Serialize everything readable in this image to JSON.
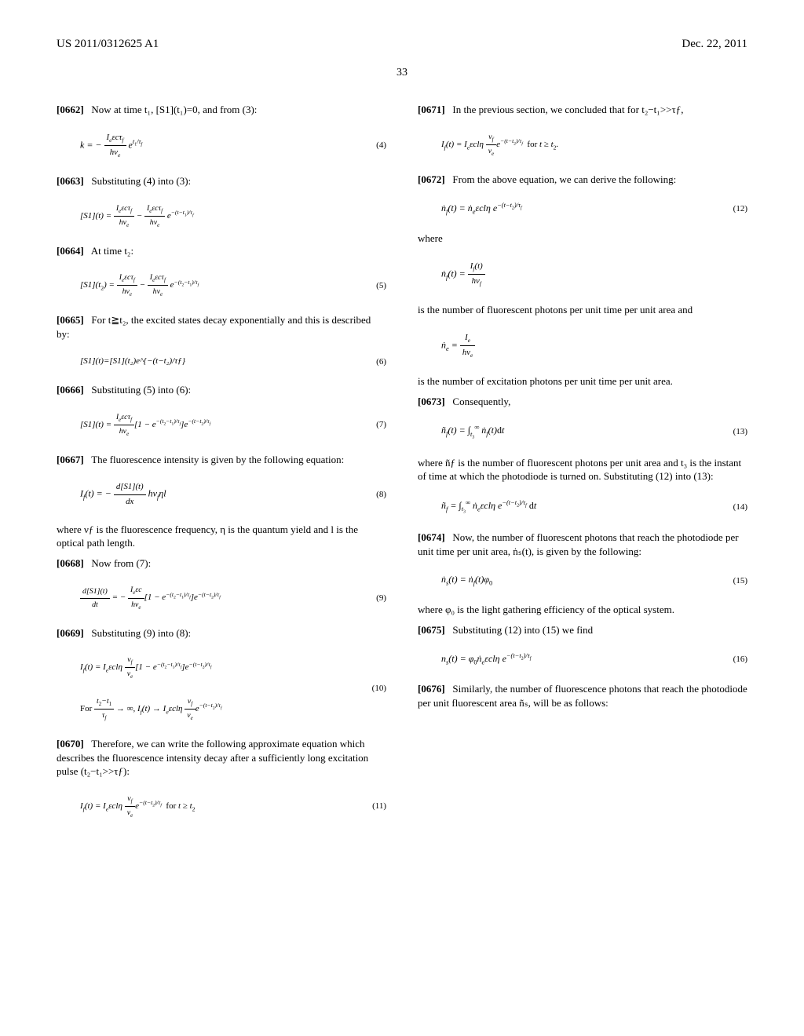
{
  "header": {
    "left": "US 2011/0312625 A1",
    "right": "Dec. 22, 2011"
  },
  "pageNumber": "33",
  "left": {
    "p0662": "Now at time t₁, [S1](t₁)=0, and from (3):",
    "eq4": "k = − (IₑεcτƒKATEX_START hνₑ) e^{t₁/τƒ}",
    "eq4num": "(4)",
    "p0663": "Substituting (4) into (3):",
    "eq_after4": "[S1](t) = (Iₑεcτƒ / hνₑ) − (Iₑεcτƒ / hνₑ) e^{−(t−t₁)/τƒ}",
    "p0664": "At time t₂:",
    "eq5": "[S1](t₂) = (Iₑεcτƒ / hνₑ) − (Iₑεcτƒ / hνₑ) e^{−(t₂−t₁)/τƒ}",
    "eq5num": "(5)",
    "p0665": "For t≧t₂, the excited states decay exponentially and this is described by:",
    "eq6": "[S1](t)=[S1](t₂)e^{−(t−t₂)/τƒ}",
    "eq6num": "(6)",
    "p0666": "Substituting (5) into (6):",
    "eq7": "[S1](t) = (Iₑεcτƒ / hνₑ)[1 − e^{−(t₂−t₁)/τƒ}]e^{−(t−t₂)/τƒ}",
    "eq7num": "(7)",
    "p0667": "The fluorescence intensity is given by the following equation:",
    "eq8": "Iƒ(t) = − (d[S1](t) / dx) hνƒ η l",
    "eq8num": "(8)",
    "p0667b": "where νƒ is the fluorescence frequency, η is the quantum yield and l is the optical path length.",
    "p0668": "Now from (7):",
    "eq9": "d[S1](t)/dt = − (Iₑεc / hνₑ)[1 − e^{−(t₂−t₁)/τƒ}]e^{−(t−t₂)/τƒ}",
    "eq9num": "(9)",
    "p0669": "Substituting (9) into (8):",
    "eq10a": "Iƒ(t) = Iₑεclη (νƒ/νₑ)[1 − e^{−(t₂−t₁)/τƒ}]e^{−(t−t₂)/τƒ}",
    "eq10b": "For (t₂−t₁)/τƒ → ∞, Iƒ(t) → Iₑεclη (νƒ/νₑ) e^{−(t−t₂)/τƒ}",
    "eq10num": "(10)",
    "p0670": "Therefore, we can write the following approximate equation which describes the fluorescence intensity decay after a sufficiently long excitation pulse (t₂−t₁>>τƒ):",
    "eq11": "Iƒ(t) = Iₑεclη (νƒ/νₑ) e^{−(t−t₂)/τƒ}  for t ≥ t₂",
    "eq11num": "(11)"
  },
  "right": {
    "p0671": "In the previous section, we concluded that for t₂−t₁>>τƒ,",
    "eq_0671": "Iƒ(t) = Iₑεclη (νƒ/νₑ) e^{−(t−t₂)/τƒ}  for t ≥ t₂.",
    "p0672": "From the above equation, we can derive the following:",
    "eq12": "ṅƒ(t) = ṅₑεclη e^{−(t−t₂)/τƒ}",
    "eq12num": "(12)",
    "where": "where",
    "eq_nf": "ṅƒ(t) = Iƒ(t) / hνƒ",
    "txt_nf": "is the number of fluorescent photons per unit time per unit area and",
    "eq_ne": "ṅₑ = Iₑ / hνₑ",
    "txt_ne": "is the number of excitation photons per unit time per unit area.",
    "p0673": "Consequently,",
    "eq13": "ñƒ(t) = ∫_{t₃}^{∞} ṅƒ(t) dt",
    "eq13num": "(13)",
    "txt13": "where ñƒ is the number of fluorescent photons per unit area and t₃ is the instant of time at which the photodiode is turned on. Substituting (12) into (13):",
    "eq14": "ñƒ = ∫_{t₃}^{∞} ṅₑεclη e^{−(t−t₂)/τƒ} dt",
    "eq14num": "(14)",
    "p0674": "Now, the number of fluorescent photons that reach the photodiode per unit time per unit area, ṅₛ(t), is given by the following:",
    "eq15": "ṅₛ(t) = ṅƒ(t)φ₀",
    "eq15num": "(15)",
    "txt15": "where φ₀ is the light gathering efficiency of the optical system.",
    "p0675": "Substituting (12) into (15) we find",
    "eq16": "nₛ(t) = φ₀ṅₑεclη e^{−(t−t₂)/τƒ}",
    "eq16num": "(16)",
    "p0676": "Similarly, the number of fluorescence photons that reach the photodiode per unit fluorescent area ñₛ, will be as follows:"
  }
}
